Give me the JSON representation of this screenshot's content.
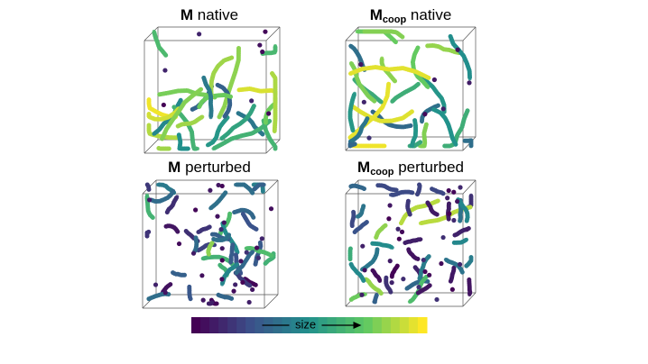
{
  "panels": [
    {
      "symbol": "M",
      "label": "native"
    },
    {
      "symbol": "M",
      "subscript": "coop",
      "label": "native"
    },
    {
      "symbol": "M",
      "label": "perturbed"
    },
    {
      "symbol": "M",
      "subscript": "coop",
      "label": "perturbed"
    }
  ],
  "colorbar": {
    "label": "size"
  }
}
